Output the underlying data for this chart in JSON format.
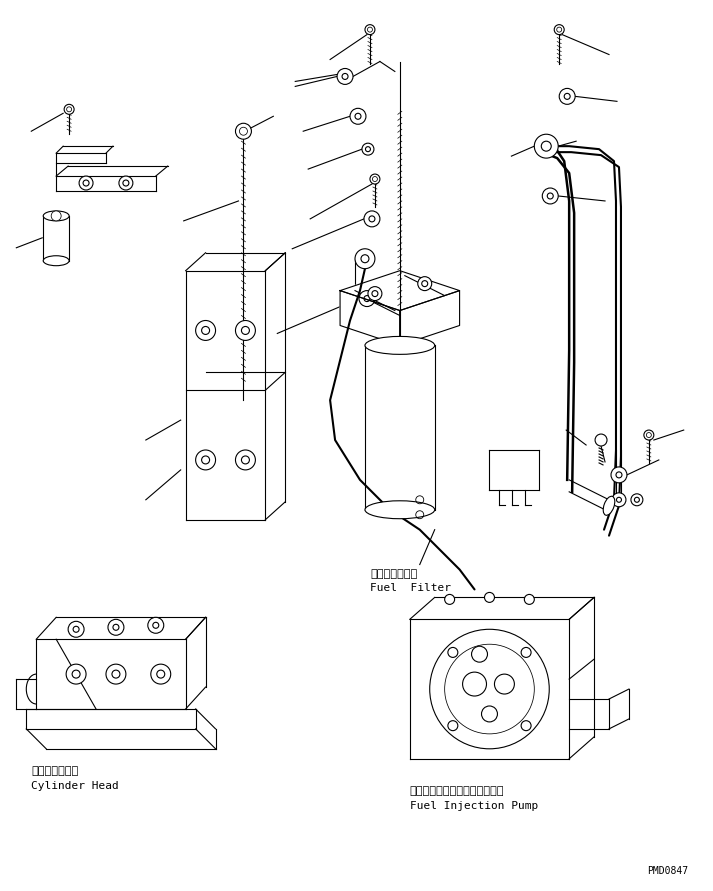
{
  "background_color": "#ffffff",
  "line_color": "#000000",
  "label_fuel_filter_ja": "フェルフィルタ",
  "label_fuel_filter_en": "Fuel  Filter",
  "label_cylinder_head_ja": "シリンダヘッド",
  "label_cylinder_head_en": "Cylinder Head",
  "label_fuel_pump_ja": "フェルインジェクションポンプ",
  "label_fuel_pump_en": "Fuel Injection Pump",
  "watermark": "PMD0847",
  "fig_width": 7.13,
  "fig_height": 8.91,
  "dpi": 100
}
